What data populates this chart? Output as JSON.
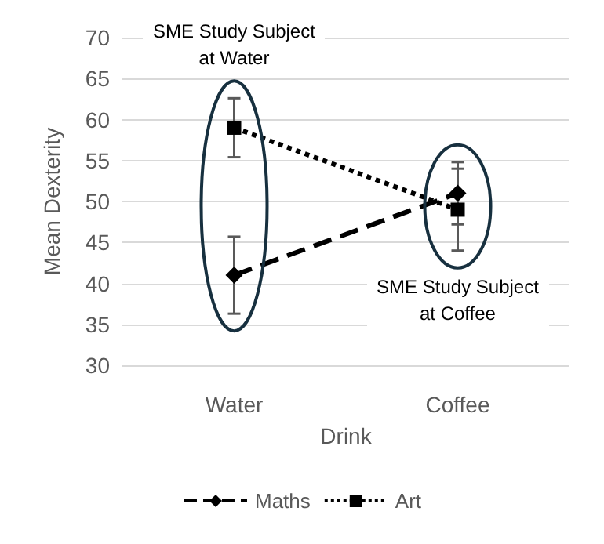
{
  "chart_data": {
    "type": "line",
    "xlabel": "Drink",
    "ylabel": "Mean Dexterity",
    "categories": [
      "Water",
      "Coffee"
    ],
    "series": [
      {
        "name": "Maths",
        "color": "#000000",
        "values": [
          41,
          51
        ],
        "errors": [
          4.7,
          3.8
        ],
        "line_style": "dashed",
        "marker": "diamond"
      },
      {
        "name": "Art",
        "color": "#000000",
        "values": [
          59,
          49
        ],
        "errors": [
          3.6,
          5
        ],
        "line_style": "dotted",
        "marker": "square"
      }
    ],
    "annotations": [
      "SME Study Subject at Water",
      "SME Study Subject at Coffee"
    ],
    "ylim": [
      30,
      70
    ],
    "yticks": [
      30,
      35,
      40,
      45,
      50,
      55,
      60,
      65,
      70
    ],
    "grid": "y",
    "legend": "bottom"
  }
}
